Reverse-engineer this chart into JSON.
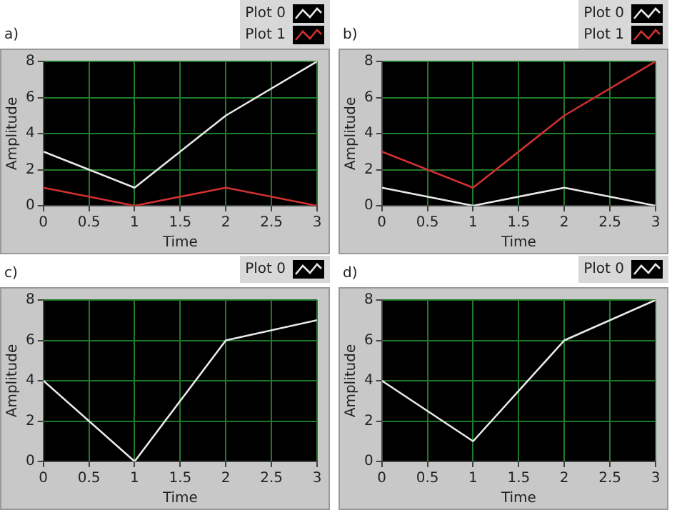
{
  "chart_data": [
    {
      "type": "line",
      "title": "a)",
      "xlabel": "Time",
      "ylabel": "Amplitude",
      "x": [
        0,
        1,
        2,
        3
      ],
      "xlim": [
        0,
        3
      ],
      "xticks": [
        0,
        0.5,
        1,
        1.5,
        2,
        2.5,
        3
      ],
      "ylim": [
        0,
        8
      ],
      "yticks": [
        0,
        2,
        4,
        6,
        8
      ],
      "grid": true,
      "legend": "top right",
      "marker": "none",
      "line_style": "solid",
      "series": [
        {
          "name": "Plot 0",
          "color": "#e8e8e8",
          "values": [
            3,
            1,
            5,
            8
          ]
        },
        {
          "name": "Plot 1",
          "color": "#d03030",
          "values": [
            1,
            0,
            1,
            0
          ]
        }
      ]
    },
    {
      "type": "line",
      "title": "b)",
      "xlabel": "Time",
      "ylabel": "Amplitude",
      "x": [
        0,
        1,
        2,
        3
      ],
      "xlim": [
        0,
        3
      ],
      "xticks": [
        0,
        0.5,
        1,
        1.5,
        2,
        2.5,
        3
      ],
      "ylim": [
        0,
        8
      ],
      "yticks": [
        0,
        2,
        4,
        6,
        8
      ],
      "grid": true,
      "legend": "top right",
      "marker": "none",
      "line_style": "solid",
      "series": [
        {
          "name": "Plot 0",
          "color": "#e8e8e8",
          "values": [
            1,
            0,
            1,
            0
          ]
        },
        {
          "name": "Plot 1",
          "color": "#d03030",
          "values": [
            3,
            1,
            5,
            8
          ]
        }
      ]
    },
    {
      "type": "line",
      "title": "c)",
      "xlabel": "Time",
      "ylabel": "Amplitude",
      "x": [
        0,
        1,
        2,
        3
      ],
      "xlim": [
        0,
        3
      ],
      "xticks": [
        0,
        0.5,
        1,
        1.5,
        2,
        2.5,
        3
      ],
      "ylim": [
        0,
        8
      ],
      "yticks": [
        0,
        2,
        4,
        6,
        8
      ],
      "grid": true,
      "legend": "top right",
      "marker": "none",
      "line_style": "solid",
      "series": [
        {
          "name": "Plot 0",
          "color": "#e8e8e8",
          "values": [
            4,
            0,
            6,
            7
          ]
        }
      ]
    },
    {
      "type": "line",
      "title": "d)",
      "xlabel": "Time",
      "ylabel": "Amplitude",
      "x": [
        0,
        1,
        2,
        3
      ],
      "xlim": [
        0,
        3
      ],
      "xticks": [
        0,
        0.5,
        1,
        1.5,
        2,
        2.5,
        3
      ],
      "ylim": [
        0,
        8
      ],
      "yticks": [
        0,
        2,
        4,
        6,
        8
      ],
      "grid": true,
      "legend": "top right",
      "marker": "none",
      "line_style": "solid",
      "series": [
        {
          "name": "Plot 0",
          "color": "#e8e8e8",
          "values": [
            4,
            1,
            6,
            8
          ]
        }
      ]
    }
  ]
}
